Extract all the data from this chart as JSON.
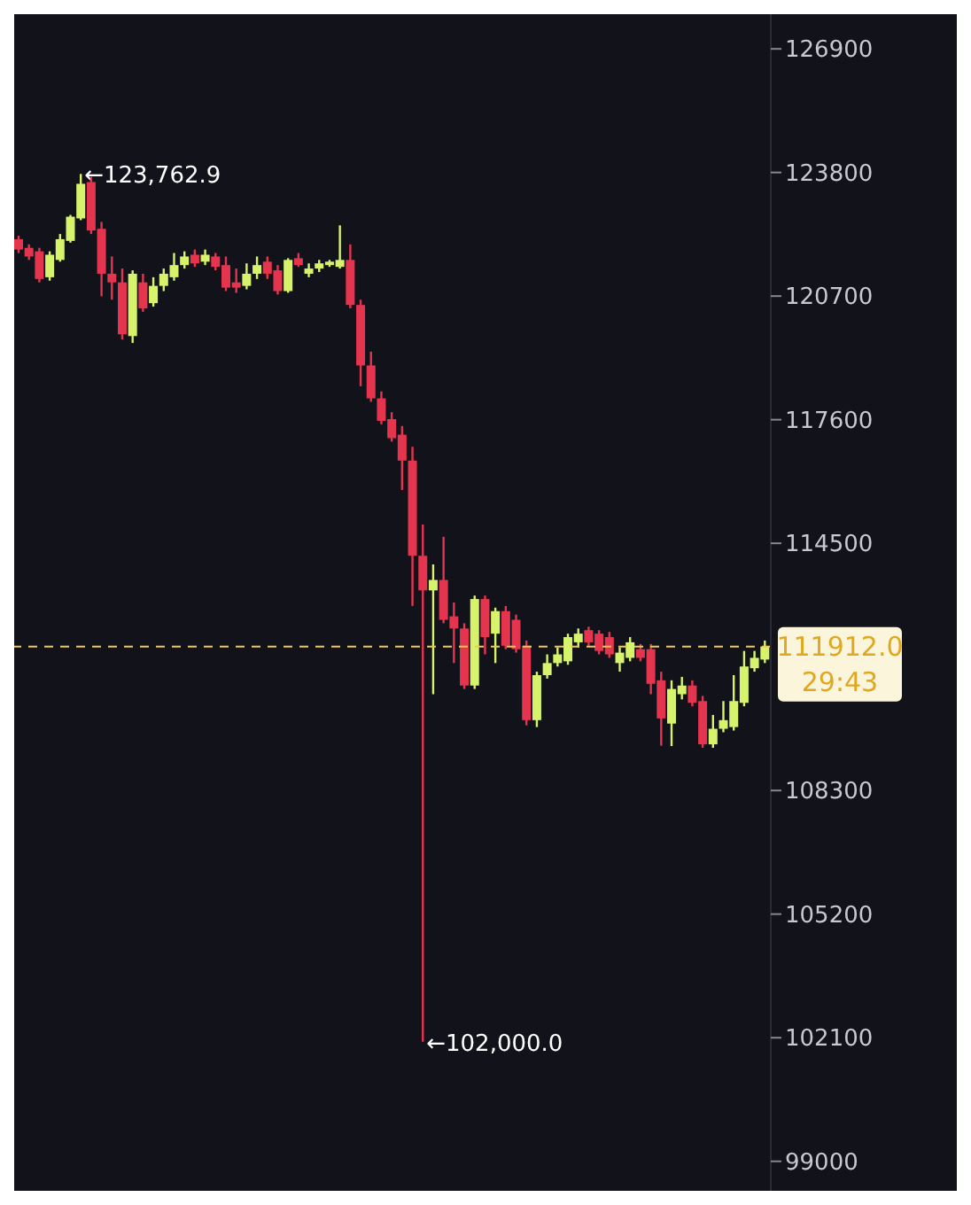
{
  "chart_data": {
    "type": "candlestick",
    "categories": [
      null,
      null,
      null,
      null,
      null,
      null,
      null,
      null,
      null,
      null,
      null,
      null,
      null,
      null,
      null,
      null,
      null,
      null,
      null,
      null,
      null,
      null,
      null,
      null,
      null,
      null,
      null,
      null,
      null,
      null,
      null,
      null,
      null,
      null,
      null,
      null,
      null,
      null,
      null,
      null,
      null,
      null,
      null,
      null,
      null,
      null,
      null,
      null,
      null,
      null,
      null,
      null,
      null,
      null,
      null,
      null,
      null,
      null,
      null,
      null,
      null,
      null,
      null,
      null,
      null,
      null,
      null,
      null,
      null,
      null,
      null,
      null,
      null
    ],
    "ohlc": [
      [
        122127,
        122214,
        121780,
        121867
      ],
      [
        121910,
        121997,
        121607,
        121693
      ],
      [
        121823,
        121910,
        121043,
        121129
      ],
      [
        121173,
        121823,
        121086,
        121737
      ],
      [
        121607,
        122257,
        121563,
        122127
      ],
      [
        122084,
        122735,
        122040,
        122691
      ],
      [
        122648,
        123762.9,
        122605,
        123516
      ],
      [
        123559,
        123689,
        122257,
        122344
      ],
      [
        122388,
        122561,
        120695,
        121260
      ],
      [
        121260,
        121693,
        120609,
        121043
      ],
      [
        121043,
        121390,
        119611,
        119741
      ],
      [
        119697,
        121346,
        119524,
        121260
      ],
      [
        121043,
        121260,
        120305,
        120392
      ],
      [
        120522,
        121173,
        120435,
        120956
      ],
      [
        120956,
        121390,
        120825,
        121260
      ],
      [
        121173,
        121780,
        121086,
        121477
      ],
      [
        121477,
        121823,
        121390,
        121693
      ],
      [
        121737,
        121867,
        121433,
        121520
      ],
      [
        121563,
        121867,
        121477,
        121737
      ],
      [
        121693,
        121780,
        121346,
        121433
      ],
      [
        121477,
        121693,
        120825,
        120912
      ],
      [
        121043,
        121390,
        120782,
        120912
      ],
      [
        120956,
        121520,
        120869,
        121260
      ],
      [
        121260,
        121693,
        121129,
        121477
      ],
      [
        121563,
        121693,
        121129,
        121260
      ],
      [
        121346,
        121477,
        120739,
        120825
      ],
      [
        120825,
        121650,
        120782,
        121607
      ],
      [
        121650,
        121780,
        121433,
        121477
      ],
      [
        121260,
        121520,
        121173,
        121390
      ],
      [
        121390,
        121607,
        121303,
        121520
      ],
      [
        121477,
        121607,
        121433,
        121563
      ],
      [
        121433,
        122474,
        121390,
        121607
      ],
      [
        121607,
        121997,
        120392,
        120478
      ],
      [
        120478,
        120609,
        118439,
        118960
      ],
      [
        118960,
        119307,
        118049,
        118135
      ],
      [
        118135,
        118309,
        117484,
        117571
      ],
      [
        117615,
        117788,
        117050,
        117137
      ],
      [
        117224,
        117441,
        115836,
        116574
      ],
      [
        116574,
        116921,
        112929,
        114187
      ],
      [
        114187,
        114968,
        102000,
        113319
      ],
      [
        113319,
        113970,
        110715,
        113580
      ],
      [
        113580,
        114664,
        112495,
        112581
      ],
      [
        112668,
        113015,
        111496,
        112364
      ],
      [
        112364,
        112495,
        110846,
        110932
      ],
      [
        110932,
        113189,
        110846,
        113102
      ],
      [
        113102,
        113189,
        111714,
        112147
      ],
      [
        112234,
        112885,
        111496,
        112798
      ],
      [
        112798,
        112928,
        111844,
        111930
      ],
      [
        112581,
        112711,
        111757,
        111844
      ],
      [
        111930,
        112061,
        109935,
        110064
      ],
      [
        110064,
        111280,
        109891,
        111193
      ],
      [
        111193,
        111714,
        111106,
        111496
      ],
      [
        111496,
        111887,
        111410,
        111714
      ],
      [
        111540,
        112234,
        111454,
        112147
      ],
      [
        112017,
        112364,
        111887,
        112234
      ],
      [
        112321,
        112408,
        111930,
        112017
      ],
      [
        112234,
        112321,
        111714,
        111800
      ],
      [
        112147,
        112277,
        111627,
        111714
      ],
      [
        111496,
        111887,
        111280,
        111757
      ],
      [
        111627,
        112147,
        111540,
        112017
      ],
      [
        111844,
        111974,
        111540,
        111627
      ],
      [
        111844,
        111974,
        110715,
        110976
      ],
      [
        111063,
        111280,
        109425,
        110108
      ],
      [
        109978,
        111063,
        109414,
        110846
      ],
      [
        110715,
        111150,
        110585,
        110932
      ],
      [
        110932,
        111063,
        110412,
        110499
      ],
      [
        110542,
        110672,
        109371,
        109458
      ],
      [
        109458,
        110195,
        109371,
        109848
      ],
      [
        109848,
        110542,
        109761,
        110064
      ],
      [
        109891,
        111193,
        109804,
        110542
      ],
      [
        110499,
        111800,
        110412,
        111410
      ],
      [
        111367,
        111800,
        111280,
        111627
      ],
      [
        111584,
        112061,
        111496,
        111912
      ]
    ],
    "colors": [
      "#e5344e",
      "#e5344e",
      "#e5344e",
      "#d6f36b",
      "#d6f36b",
      "#d6f36b",
      "#d6f36b",
      "#e5344e",
      "#e5344e",
      "#e5344e",
      "#e5344e",
      "#d6f36b",
      "#e5344e",
      "#d6f36b",
      "#d6f36b",
      "#d6f36b",
      "#d6f36b",
      "#e5344e",
      "#d6f36b",
      "#e5344e",
      "#e5344e",
      "#e5344e",
      "#d6f36b",
      "#d6f36b",
      "#e5344e",
      "#e5344e",
      "#d6f36b",
      "#e5344e",
      "#d6f36b",
      "#d6f36b",
      "#d6f36b",
      "#d6f36b",
      "#e5344e",
      "#e5344e",
      "#e5344e",
      "#e5344e",
      "#e5344e",
      "#e5344e",
      "#e5344e",
      "#e5344e",
      "#d6f36b",
      "#e5344e",
      "#e5344e",
      "#e5344e",
      "#d6f36b",
      "#e5344e",
      "#d6f36b",
      "#e5344e",
      "#e5344e",
      "#e5344e",
      "#d6f36b",
      "#d6f36b",
      "#d6f36b",
      "#d6f36b",
      "#d6f36b",
      "#e5344e",
      "#e5344e",
      "#e5344e",
      "#d6f36b",
      "#d6f36b",
      "#e5344e",
      "#e5344e",
      "#e5344e",
      "#d6f36b",
      "#d6f36b",
      "#e5344e",
      "#e5344e",
      "#d6f36b",
      "#d6f36b",
      "#d6f36b",
      "#d6f36b",
      "#d6f36b",
      "#d6f36b"
    ],
    "ylim": [
      98260,
      127770
    ],
    "yticks": [
      99000,
      102100,
      105200,
      108300,
      114500,
      117600,
      120700,
      123800,
      126900
    ],
    "tick_labels": "y",
    "ref_lines": [
      {
        "axis": "y",
        "value": 111912,
        "label": "111912.0",
        "color": "#f2c94c",
        "line_style": "dashed"
      }
    ],
    "annotations": [
      "←123,762.9",
      "←102,000.0",
      "29:43"
    ]
  }
}
